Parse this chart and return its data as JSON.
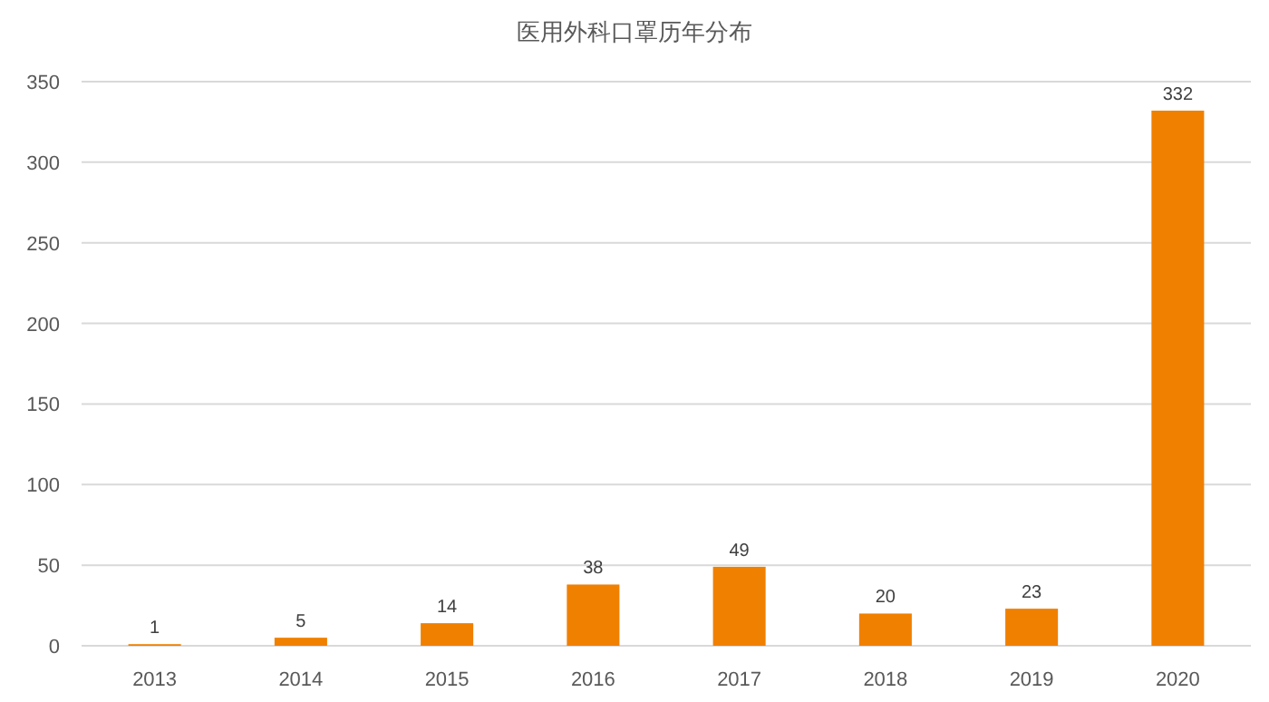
{
  "chart_data": {
    "type": "bar",
    "title": "医用外科口罩历年分布",
    "categories": [
      "2013",
      "2014",
      "2015",
      "2016",
      "2017",
      "2018",
      "2019",
      "2020"
    ],
    "values": [
      1,
      5,
      14,
      38,
      49,
      20,
      23,
      332
    ],
    "color": "#f08000",
    "ylim": [
      0,
      350
    ],
    "yticks": [
      0,
      50,
      100,
      150,
      200,
      250,
      300,
      350
    ],
    "grid": "y",
    "data_labels": true
  }
}
